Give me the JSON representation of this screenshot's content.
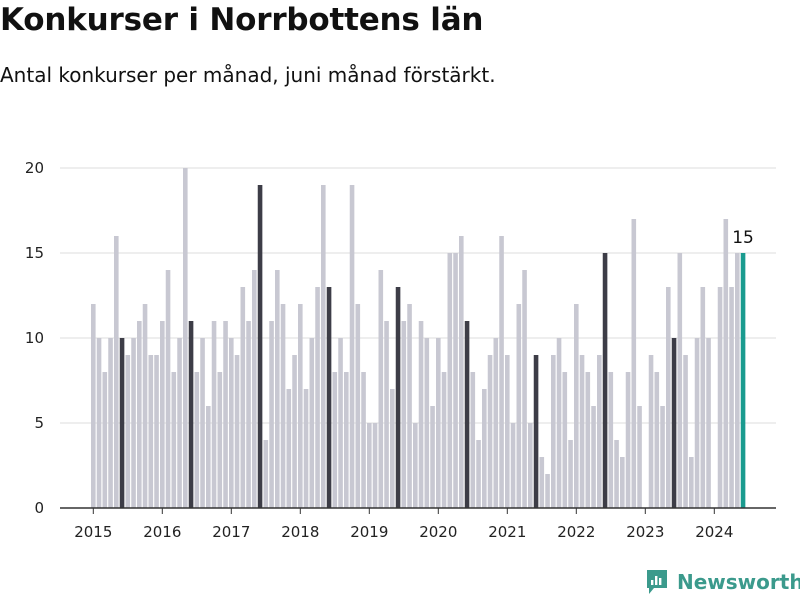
{
  "title": "Konkurser i Norrbottens län",
  "subtitle": "Antal konkurser per månad, juni månad förstärkt.",
  "brand": {
    "name": "Newsworthy",
    "icon": "newsworthy-logo-icon"
  },
  "colors": {
    "bar": "#c8c8d2",
    "highlight": "#3d3d47",
    "latest": "#1a9b8f",
    "grid": "#dcdcdc",
    "axis": "#333333",
    "brand": "#3b9a8c"
  },
  "chart_data": {
    "type": "bar",
    "title": "Konkurser i Norrbottens län",
    "subtitle": "Antal konkurser per månad, juni månad förstärkt.",
    "xlabel": "",
    "ylabel": "",
    "ylim": [
      0,
      20
    ],
    "yticks": [
      0,
      5,
      10,
      15,
      20
    ],
    "xticks": [
      "2015",
      "2016",
      "2017",
      "2018",
      "2019",
      "2020",
      "2021",
      "2022",
      "2023",
      "2024"
    ],
    "grid": true,
    "highlight_month": "June",
    "start": "2015-01",
    "end": "2024-06",
    "values": [
      12,
      10,
      8,
      10,
      16,
      10,
      9,
      10,
      11,
      12,
      9,
      9,
      11,
      14,
      8,
      10,
      20,
      11,
      8,
      10,
      6,
      11,
      8,
      11,
      10,
      9,
      13,
      11,
      14,
      19,
      4,
      11,
      14,
      12,
      7,
      9,
      12,
      7,
      10,
      13,
      19,
      13,
      8,
      10,
      8,
      19,
      12,
      8,
      5,
      5,
      14,
      11,
      7,
      13,
      11,
      12,
      5,
      11,
      10,
      6,
      10,
      8,
      15,
      15,
      16,
      11,
      8,
      4,
      7,
      9,
      10,
      16,
      9,
      5,
      12,
      14,
      5,
      9,
      3,
      2,
      9,
      10,
      8,
      4,
      12,
      9,
      8,
      6,
      9,
      15,
      8,
      4,
      3,
      8,
      17,
      6,
      0,
      9,
      8,
      6,
      13,
      10,
      15,
      9,
      3,
      10,
      13,
      10,
      0,
      13,
      17,
      13,
      15,
      15
    ],
    "data_labels": [
      {
        "period": "2024-06",
        "value": 15,
        "text": "15"
      }
    ]
  }
}
